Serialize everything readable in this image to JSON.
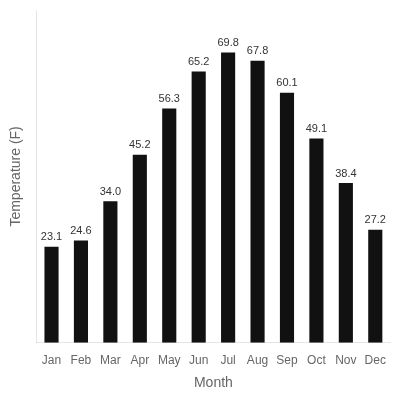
{
  "chart_data": {
    "type": "bar",
    "categories": [
      "Jan",
      "Feb",
      "Mar",
      "Apr",
      "May",
      "Jun",
      "Jul",
      "Aug",
      "Sep",
      "Oct",
      "Nov",
      "Dec"
    ],
    "values": [
      23.1,
      24.6,
      34.0,
      45.2,
      56.3,
      65.2,
      69.8,
      67.8,
      60.1,
      49.1,
      38.4,
      27.2
    ],
    "value_labels": [
      "23.1",
      "24.6",
      "34.0",
      "45.2",
      "56.3",
      "65.2",
      "69.8",
      "67.8",
      "60.1",
      "49.1",
      "38.4",
      "27.2"
    ],
    "color": "#111111",
    "x_label": "Month",
    "y_label": "Temperature (F)",
    "ylim": [
      0,
      80
    ],
    "grid": false,
    "data_labels": true,
    "tick_labels": "x"
  }
}
